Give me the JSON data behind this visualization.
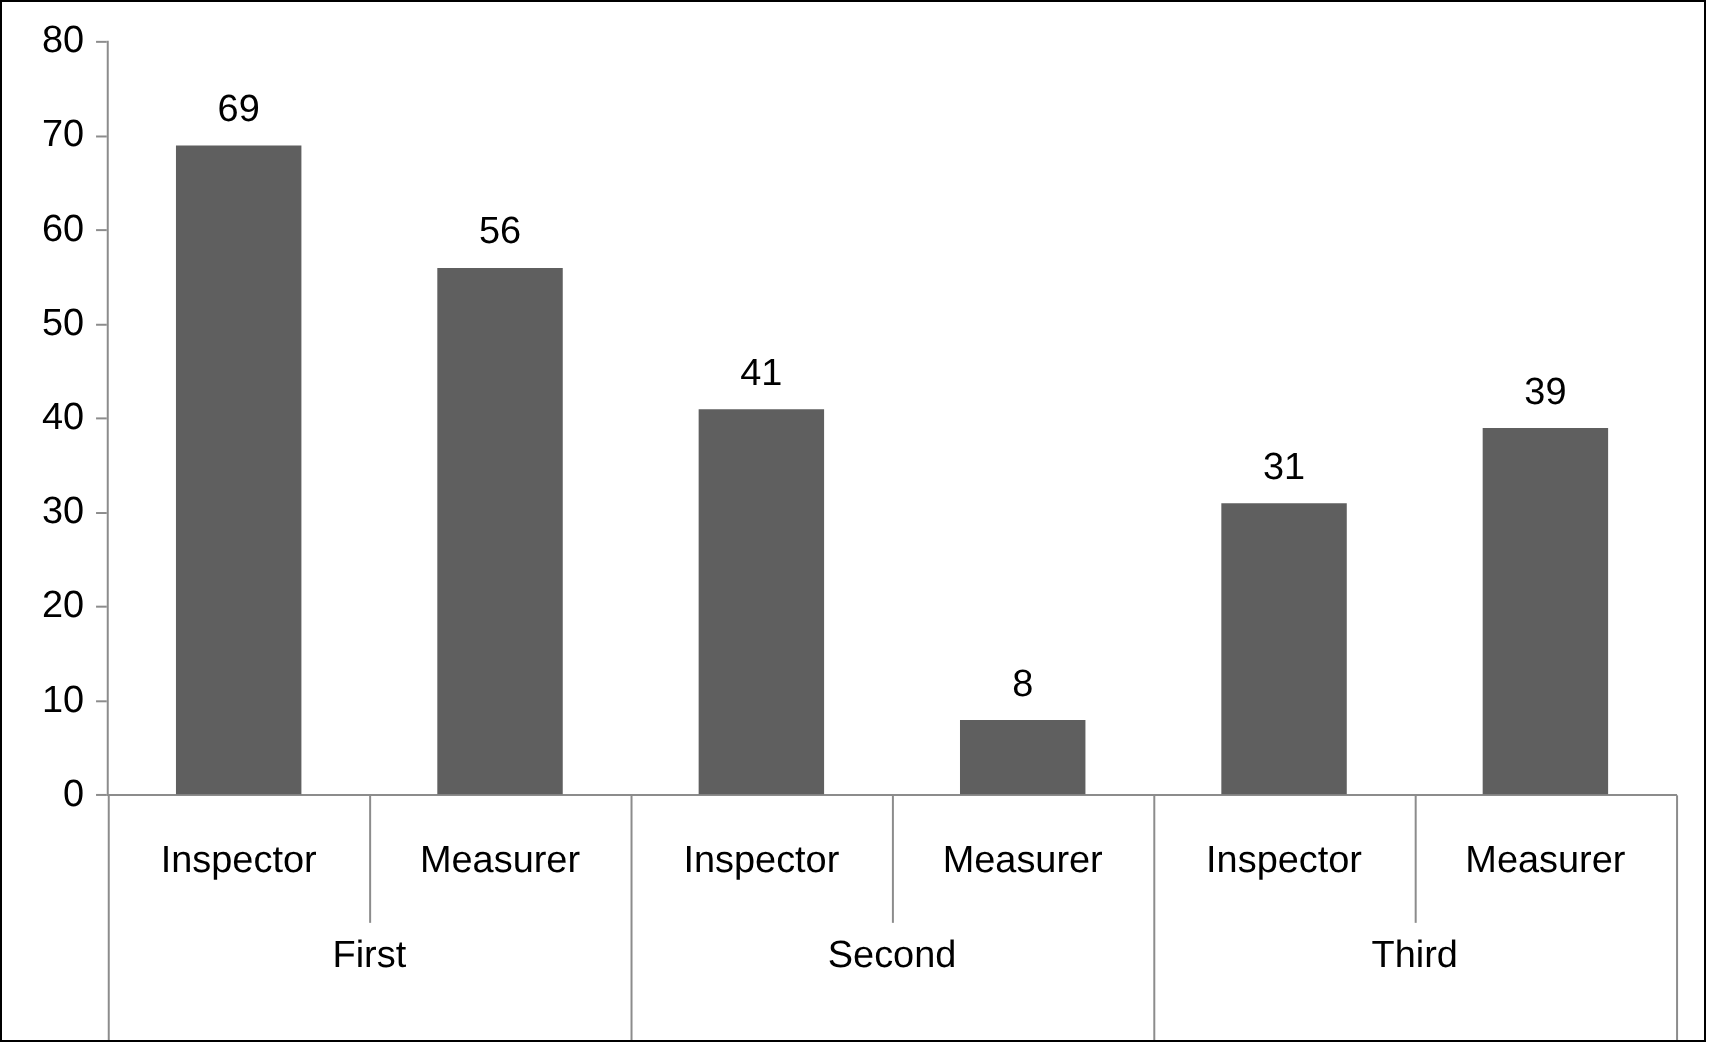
{
  "chart_data": {
    "type": "bar",
    "categories": [
      "Inspector",
      "Measurer",
      "Inspector",
      "Measurer",
      "Inspector",
      "Measurer"
    ],
    "values": [
      69,
      56,
      41,
      8,
      31,
      39
    ],
    "color": "#5f5f5f",
    "annotations": [
      "First",
      "Second",
      "Third"
    ],
    "ylim": [
      0,
      80
    ],
    "yticks": [
      0,
      10,
      20,
      30,
      40,
      50,
      60,
      70,
      80
    ],
    "grid": false,
    "legend": false,
    "data_labels": true
  }
}
